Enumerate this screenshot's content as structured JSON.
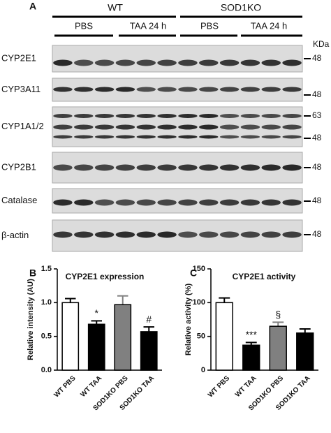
{
  "blot": {
    "panel": "A",
    "groups": [
      "WT",
      "SOD1KO"
    ],
    "treatments": [
      "PBS",
      "TAA 24 h",
      "PBS",
      "TAA 24 h"
    ],
    "unit": "KDa",
    "rows": [
      {
        "label": "CYP2E1",
        "markers": [
          "48"
        ]
      },
      {
        "label": "CYP3A11",
        "markers": [
          "48"
        ]
      },
      {
        "label": "CYP1A1/2",
        "markers": [
          "63",
          "48"
        ]
      },
      {
        "label": "CYP2B1",
        "markers": [
          "48"
        ]
      },
      {
        "label": "Catalase",
        "markers": [
          "48"
        ]
      },
      {
        "label": "β-actin",
        "markers": [
          "48"
        ]
      }
    ]
  },
  "chart_data": [
    {
      "type": "bar",
      "panel": "B",
      "title": "CYP2E1 expression",
      "y_label": "Relative intensity (AU)",
      "categories": [
        "WT PBS",
        "WT TAA",
        "SOD1KO PBS",
        "SOD1KO TAA"
      ],
      "values": [
        1.0,
        0.68,
        0.97,
        0.57
      ],
      "errors": [
        0.06,
        0.05,
        0.13,
        0.07
      ],
      "colors": [
        "#ffffff",
        "#000000",
        "#808080",
        "#000000"
      ],
      "annotations": [
        null,
        "*",
        null,
        "#"
      ],
      "ylim": [
        0,
        1.5
      ],
      "yticks": [
        {
          "value": 0,
          "label": "0.0"
        },
        0.5,
        {
          "value": 1,
          "label": "1.0"
        },
        1.5
      ]
    },
    {
      "type": "bar",
      "panel": "C",
      "title": "CYP2E1 activity",
      "y_label": "Relative activity (%)",
      "categories": [
        "WT PBS",
        "WT TAA",
        "SOD1KO PBS",
        "SOD1KO TAA"
      ],
      "values": [
        100,
        37,
        65,
        55
      ],
      "errors": [
        7,
        4,
        6,
        6
      ],
      "colors": [
        "#ffffff",
        "#000000",
        "#808080",
        "#000000"
      ],
      "annotations": [
        null,
        "***",
        "§",
        null
      ],
      "ylim": [
        0,
        150
      ],
      "yticks": [
        0,
        50,
        100,
        150
      ]
    }
  ]
}
